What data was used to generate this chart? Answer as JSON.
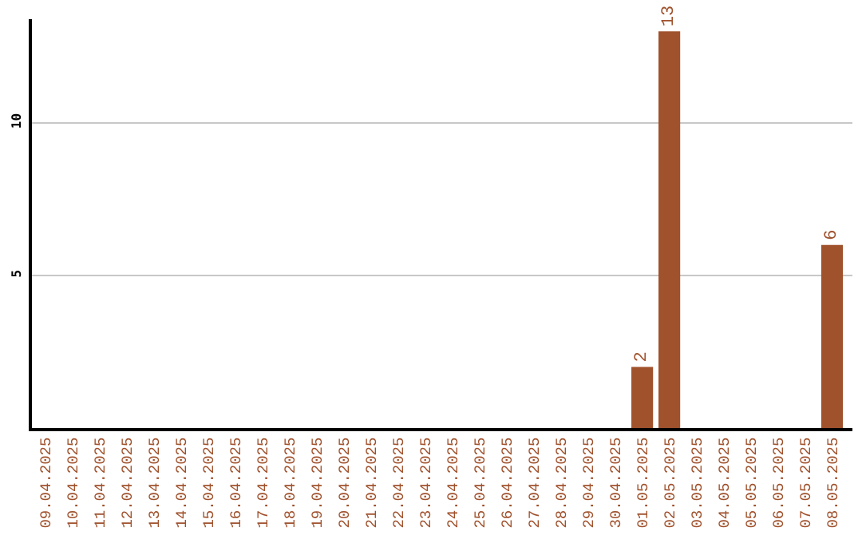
{
  "chart_data": {
    "type": "bar",
    "categories": [
      "09.04.2025",
      "10.04.2025",
      "11.04.2025",
      "12.04.2025",
      "13.04.2025",
      "14.04.2025",
      "15.04.2025",
      "16.04.2025",
      "17.04.2025",
      "18.04.2025",
      "19.04.2025",
      "20.04.2025",
      "21.04.2025",
      "22.04.2025",
      "23.04.2025",
      "24.04.2025",
      "25.04.2025",
      "26.04.2025",
      "27.04.2025",
      "28.04.2025",
      "29.04.2025",
      "30.04.2025",
      "01.05.2025",
      "02.05.2025",
      "03.05.2025",
      "04.05.2025",
      "05.05.2025",
      "06.05.2025",
      "07.05.2025",
      "08.05.2025"
    ],
    "values": [
      0,
      0,
      0,
      0,
      0,
      0,
      0,
      0,
      0,
      0,
      0,
      0,
      0,
      0,
      0,
      0,
      0,
      0,
      0,
      0,
      0,
      0,
      2,
      13,
      0,
      0,
      0,
      0,
      0,
      6
    ],
    "value_labels": [
      null,
      null,
      null,
      null,
      null,
      null,
      null,
      null,
      null,
      null,
      null,
      null,
      null,
      null,
      null,
      null,
      null,
      null,
      null,
      null,
      null,
      null,
      "2",
      "13",
      null,
      null,
      null,
      null,
      null,
      "6"
    ],
    "color": "#a0522d",
    "ylim": [
      0,
      13.4
    ],
    "yticks": [
      5,
      10
    ],
    "grid": "y",
    "legend": false
  }
}
